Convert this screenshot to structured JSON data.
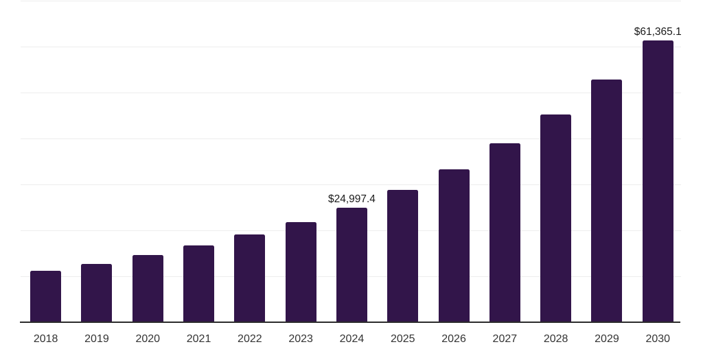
{
  "chart_data": {
    "type": "bar",
    "title": "",
    "xlabel": "",
    "ylabel": "",
    "categories": [
      "2018",
      "2019",
      "2020",
      "2021",
      "2022",
      "2023",
      "2024",
      "2025",
      "2026",
      "2027",
      "2028",
      "2029",
      "2030"
    ],
    "values": [
      11200,
      12700,
      14600,
      16700,
      19100,
      21800,
      24997.4,
      28800,
      33300,
      39000,
      45200,
      52900,
      61365.1
    ],
    "value_labels": [
      "",
      "",
      "",
      "",
      "",
      "",
      "$24,997.4",
      "",
      "",
      "",
      "",
      "",
      "$61,365.1"
    ],
    "ylim": [
      0,
      70000
    ],
    "gridline_step": 10000,
    "grid": true,
    "legend": false,
    "colors": {
      "bar": "#32154A",
      "axis_line": "#2B2B2B",
      "gridline": "#EDEDED",
      "tick_label": "#333333",
      "value_label": "#1A1A1A",
      "background": "#FFFFFF"
    }
  }
}
